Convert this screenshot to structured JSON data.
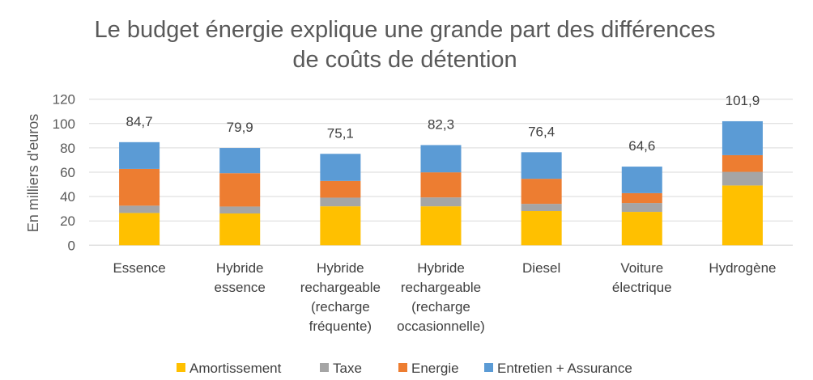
{
  "chart_data": {
    "type": "bar",
    "stacked": true,
    "title": "Le budget énergie explique une grande part des différences de coûts de détention",
    "title_lines": [
      "Le budget énergie explique une grande part des différences",
      "de coûts de détention"
    ],
    "xlabel": "",
    "ylabel": "En milliers d'euros",
    "ylim": [
      0,
      120
    ],
    "yticks": [
      0,
      20,
      40,
      60,
      80,
      100,
      120
    ],
    "grid": true,
    "legend_position": "bottom",
    "categories": [
      [
        "Essence"
      ],
      [
        "Hybride",
        "essence"
      ],
      [
        "Hybride",
        "rechargeable",
        "(recharge",
        "fréquente)"
      ],
      [
        "Hybride",
        "rechargeable",
        "(recharge",
        "occasionnelle)"
      ],
      [
        "Diesel"
      ],
      [
        "Voiture",
        "électrique"
      ],
      [
        "Hydrogène"
      ]
    ],
    "series": [
      {
        "name": "Amortissement",
        "color": "#FFC000",
        "values": [
          26.5,
          26.1,
          32.0,
          32.0,
          28.1,
          27.4,
          49.1
        ]
      },
      {
        "name": "Taxe",
        "color": "#A5A5A5",
        "values": [
          6.0,
          5.7,
          7.1,
          7.3,
          5.9,
          7.3,
          11.2
        ]
      },
      {
        "name": "Energie",
        "color": "#ED7D31",
        "values": [
          30.2,
          27.4,
          13.7,
          20.6,
          20.6,
          8.1,
          13.7
        ]
      },
      {
        "name": "Entretien + Assurance",
        "color": "#5B9BD5",
        "values": [
          22.0,
          20.7,
          22.3,
          22.4,
          21.8,
          21.8,
          27.9
        ]
      }
    ],
    "totals": [
      84.7,
      79.9,
      75.1,
      82.3,
      76.4,
      64.6,
      101.9
    ],
    "total_labels": [
      "84,7",
      "79,9",
      "75,1",
      "82,3",
      "76,4",
      "64,6",
      "101,9"
    ]
  }
}
